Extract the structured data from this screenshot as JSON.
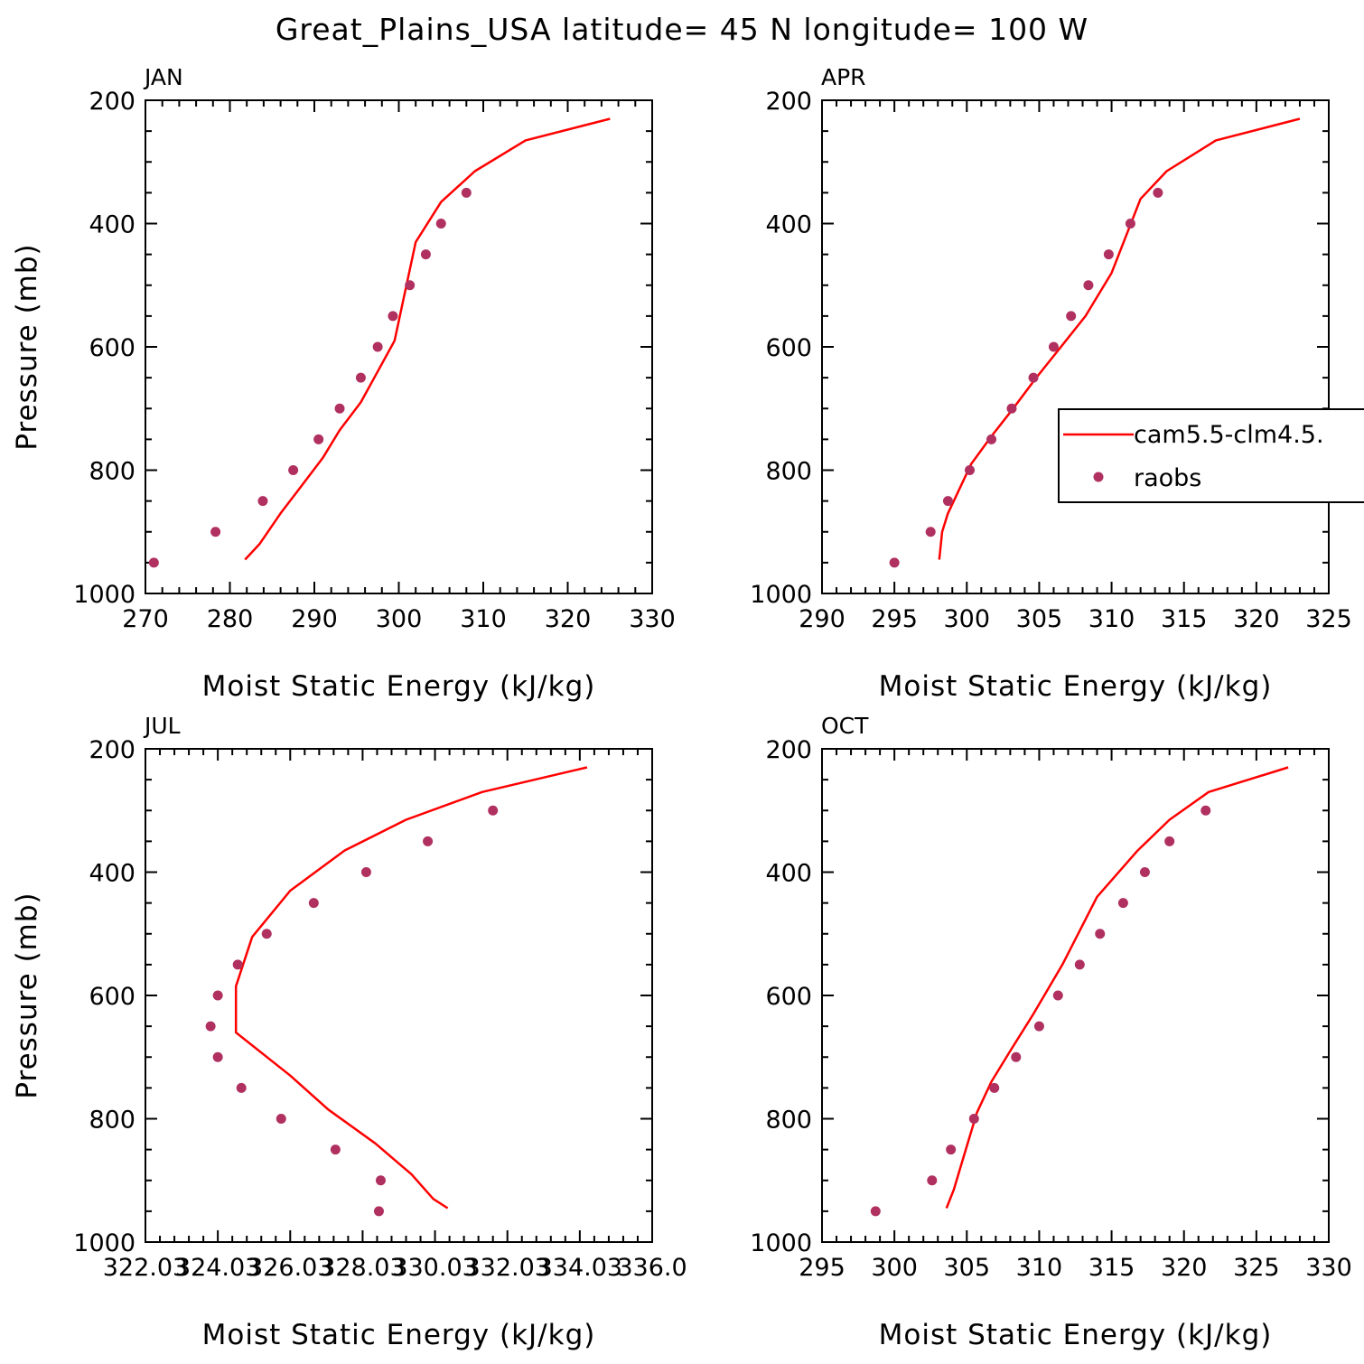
{
  "title": "Great_Plains_USA  latitude= 45 N longitude= 100 W",
  "legend": {
    "model_label": "cam5.5-clm4.5.",
    "obs_label": "raobs"
  },
  "colors": {
    "model": "#ff0000",
    "obs": "#b03060",
    "axis": "#000000"
  },
  "chart_data": [
    {
      "type": "line",
      "panel": "JAN",
      "xlabel": "Moist Static Energy (kJ/kg)",
      "ylabel": "Pressure (mb)",
      "xlim": [
        270,
        330
      ],
      "ylim": [
        1000,
        200
      ],
      "xticks": [
        270,
        280,
        290,
        300,
        310,
        320,
        330
      ],
      "xtick_labels": [
        "270",
        "280",
        "290",
        "300",
        "310",
        "320",
        "330"
      ],
      "yticks": [
        200,
        400,
        600,
        800,
        1000
      ],
      "ytick_labels": [
        "200",
        "400",
        "600",
        "800",
        "1000"
      ],
      "model": {
        "name": "cam5.5-clm4.5.",
        "x": [
          281.8,
          283.5,
          286,
          288.5,
          291,
          293,
          295.5,
          297.5,
          299.5,
          302,
          305,
          309,
          315,
          325
        ],
        "y": [
          945,
          920,
          870,
          825,
          780,
          735,
          690,
          640,
          590,
          430,
          365,
          315,
          265,
          230
        ]
      },
      "obs": {
        "name": "raobs",
        "x": [
          271,
          278.3,
          283.9,
          287.5,
          290.5,
          293,
          295.5,
          297.5,
          299.3,
          301.3,
          303.2,
          305,
          308
        ],
        "y": [
          950,
          900,
          850,
          800,
          750,
          700,
          650,
          600,
          550,
          500,
          450,
          400,
          350
        ]
      }
    },
    {
      "type": "line",
      "panel": "APR",
      "xlabel": "Moist Static Energy (kJ/kg)",
      "ylabel": "",
      "xlim": [
        290,
        325
      ],
      "ylim": [
        1000,
        200
      ],
      "xticks": [
        290,
        295,
        300,
        305,
        310,
        315,
        320,
        325
      ],
      "xtick_labels": [
        "290",
        "295",
        "300",
        "305",
        "310",
        "315",
        "320",
        "325"
      ],
      "yticks": [
        200,
        400,
        600,
        800,
        1000
      ],
      "ytick_labels": [
        "200",
        "400",
        "600",
        "800",
        "1000"
      ],
      "model": {
        "name": "cam5.5-clm4.5.",
        "x": [
          298.1,
          298.3,
          298.7,
          299.3,
          300.3,
          301.7,
          303.2,
          304.8,
          306.5,
          308.2,
          310,
          312,
          313.8,
          317.2,
          323
        ],
        "y": [
          945,
          900,
          870,
          840,
          790,
          745,
          700,
          650,
          600,
          550,
          480,
          360,
          315,
          265,
          230
        ]
      },
      "obs": {
        "name": "raobs",
        "x": [
          295,
          297.5,
          298.7,
          300.2,
          301.7,
          303.1,
          304.6,
          306,
          307.2,
          308.4,
          309.8,
          311.3,
          313.2
        ],
        "y": [
          950,
          900,
          850,
          800,
          750,
          700,
          650,
          600,
          550,
          500,
          450,
          400,
          350
        ]
      }
    },
    {
      "type": "line",
      "panel": "JUL",
      "xlabel": "Moist Static Energy (kJ/kg)",
      "ylabel": "Pressure (mb)",
      "xlim": [
        322.03,
        336.03
      ],
      "ylim": [
        1000,
        200
      ],
      "xticks": [
        322.03,
        324.03,
        326.03,
        328.03,
        330.03,
        332.03,
        334.03,
        336.03
      ],
      "xtick_labels": [
        "322.03",
        "324.03",
        "326.03",
        "328.03",
        "330.03",
        "332.03",
        "334.03",
        "336.0"
      ],
      "yticks": [
        200,
        400,
        600,
        800,
        1000
      ],
      "ytick_labels": [
        "200",
        "400",
        "600",
        "800",
        "1000"
      ],
      "model": {
        "name": "cam5.5-clm4.5.",
        "x": [
          330.38,
          329.98,
          329.38,
          328.98,
          328.38,
          327.08,
          326.03,
          324.53,
          324.53,
          324.53,
          324.98,
          326.03,
          327.53,
          329.23,
          331.33,
          334.23
        ],
        "y": [
          945,
          930,
          890,
          870,
          840,
          785,
          730,
          660,
          620,
          585,
          505,
          430,
          365,
          315,
          270,
          230
        ]
      },
      "obs": {
        "name": "raobs",
        "x": [
          328.48,
          328.53,
          327.28,
          325.78,
          324.68,
          324.03,
          323.83,
          324.03,
          324.58,
          325.38,
          326.68,
          328.13,
          329.83,
          331.63
        ],
        "y": [
          950,
          900,
          850,
          800,
          750,
          700,
          650,
          600,
          550,
          500,
          450,
          400,
          350,
          300
        ]
      }
    },
    {
      "type": "line",
      "panel": "OCT",
      "xlabel": "Moist Static Energy (kJ/kg)",
      "ylabel": "",
      "xlim": [
        295,
        330
      ],
      "ylim": [
        1000,
        200
      ],
      "xticks": [
        295,
        300,
        305,
        310,
        315,
        320,
        325,
        330
      ],
      "xtick_labels": [
        "295",
        "300",
        "305",
        "310",
        "315",
        "320",
        "325",
        "330"
      ],
      "yticks": [
        200,
        400,
        600,
        800,
        1000
      ],
      "ytick_labels": [
        "200",
        "400",
        "600",
        "800",
        "1000"
      ],
      "model": {
        "name": "cam5.5-clm4.5.",
        "x": [
          303.6,
          304.1,
          304.8,
          305.7,
          306.7,
          308,
          309.6,
          311.6,
          314,
          316.8,
          319,
          321.7,
          327.2
        ],
        "y": [
          945,
          915,
          860,
          790,
          740,
          690,
          630,
          550,
          440,
          365,
          315,
          270,
          230
        ]
      },
      "obs": {
        "name": "raobs",
        "x": [
          298.7,
          302.6,
          303.9,
          305.5,
          306.9,
          308.4,
          310,
          311.3,
          312.8,
          314.2,
          315.8,
          317.3,
          319,
          321.5
        ],
        "y": [
          950,
          900,
          850,
          800,
          750,
          700,
          650,
          600,
          550,
          500,
          450,
          400,
          350,
          300
        ]
      }
    }
  ]
}
